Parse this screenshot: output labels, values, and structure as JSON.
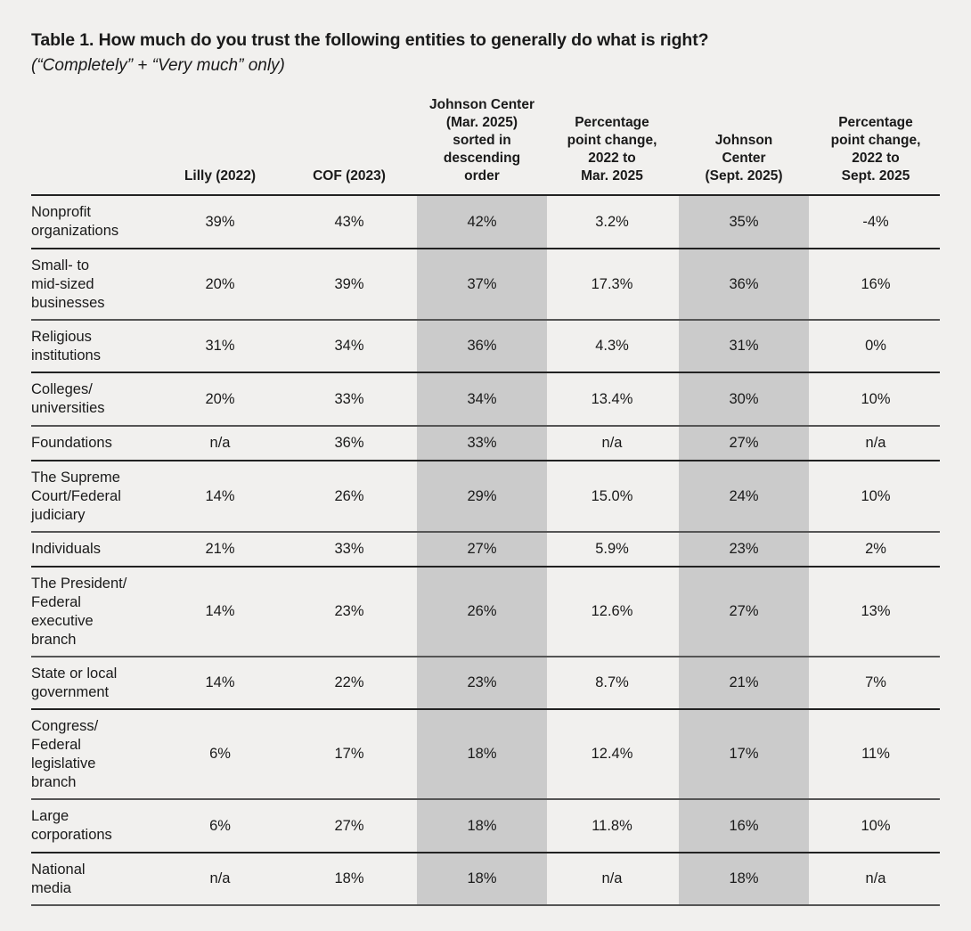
{
  "title": "Table 1.  How much do you trust the following entities to generally do what is right?",
  "subtitle": "(“Completely” + “Very much” only)",
  "colors": {
    "background": "#f1f0ee",
    "highlight_column": "#cbcbcb",
    "rule": "#222222"
  },
  "columns": [
    "",
    "Lilly (2022)",
    "COF (2023)",
    "Johnson Center (Mar. 2025) sorted in descending order",
    "Percentage point change, 2022 to Mar. 2025",
    "Johnson Center (Sept. 2025)",
    "Percentage point change, 2022 to Sept. 2025"
  ],
  "header_lines": {
    "c1": [
      "Lilly (2022)"
    ],
    "c2": [
      "COF (2023)"
    ],
    "c3": [
      "Johnson Center",
      "(Mar. 2025)",
      "sorted in",
      "descending",
      "order"
    ],
    "c4": [
      "Percentage",
      "point change,",
      "2022 to",
      "Mar. 2025"
    ],
    "c5": [
      "Johnson",
      "Center",
      "(Sept. 2025)"
    ],
    "c6": [
      "Percentage",
      "point change,",
      "2022 to",
      "Sept. 2025"
    ]
  },
  "rows": [
    {
      "entity": "Nonprofit organizations",
      "values": [
        "39%",
        "43%",
        "42%",
        "3.2%",
        "35%",
        "-4%"
      ]
    },
    {
      "entity": "Small- to mid-sized businesses",
      "values": [
        "20%",
        "39%",
        "37%",
        "17.3%",
        "36%",
        "16%"
      ]
    },
    {
      "entity": "Religious institutions",
      "values": [
        "31%",
        "34%",
        "36%",
        "4.3%",
        "31%",
        "0%"
      ]
    },
    {
      "entity": "Colleges/ universities",
      "values": [
        "20%",
        "33%",
        "34%",
        "13.4%",
        "30%",
        "10%"
      ]
    },
    {
      "entity": "Foundations",
      "values": [
        "n/a",
        "36%",
        "33%",
        "n/a",
        "27%",
        "n/a"
      ]
    },
    {
      "entity": "The Supreme Court/Federal judiciary",
      "values": [
        "14%",
        "26%",
        "29%",
        "15.0%",
        "24%",
        "10%"
      ]
    },
    {
      "entity": "Individuals",
      "values": [
        "21%",
        "33%",
        "27%",
        "5.9%",
        "23%",
        "2%"
      ]
    },
    {
      "entity": "The President/ Federal executive branch",
      "values": [
        "14%",
        "23%",
        "26%",
        "12.6%",
        "27%",
        "13%"
      ]
    },
    {
      "entity": "State or local government",
      "values": [
        "14%",
        "22%",
        "23%",
        "8.7%",
        "21%",
        "7%"
      ]
    },
    {
      "entity": "Congress/ Federal legislative branch",
      "values": [
        "6%",
        "17%",
        "18%",
        "12.4%",
        "17%",
        "11%"
      ]
    },
    {
      "entity": "Large corporations",
      "values": [
        "6%",
        "27%",
        "18%",
        "11.8%",
        "16%",
        "10%"
      ]
    },
    {
      "entity": "National media",
      "values": [
        "n/a",
        "18%",
        "18%",
        "n/a",
        "18%",
        "n/a"
      ]
    }
  ]
}
